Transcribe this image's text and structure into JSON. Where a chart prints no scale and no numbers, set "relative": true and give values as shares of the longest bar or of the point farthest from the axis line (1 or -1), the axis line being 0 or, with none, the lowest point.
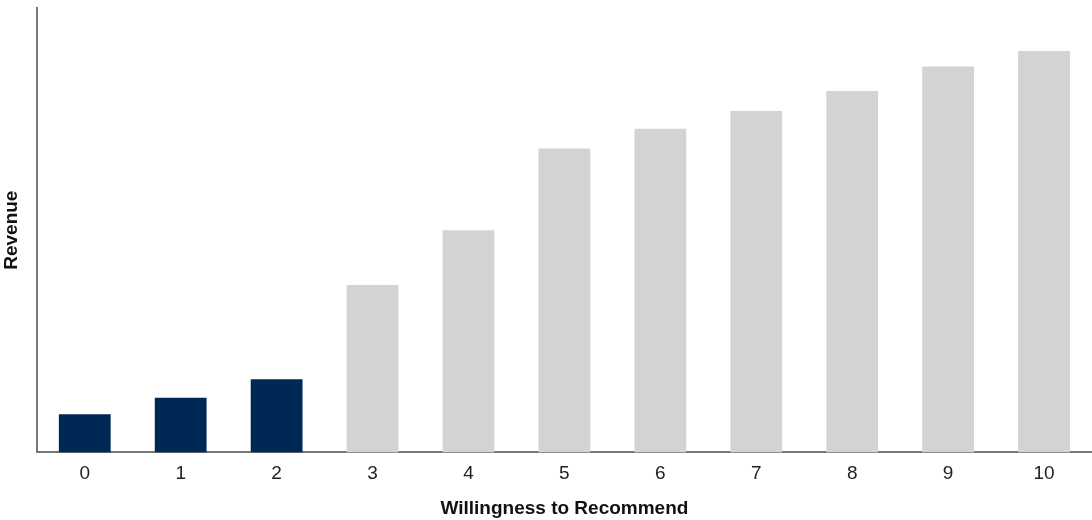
{
  "chart_data": {
    "type": "bar",
    "relative": true,
    "xlabel": "Willingness to Recommend",
    "ylabel": "Revenue",
    "categories": [
      "0",
      "1",
      "2",
      "3",
      "4",
      "5",
      "6",
      "7",
      "8",
      "9",
      "10"
    ],
    "values": [
      0.095,
      0.136,
      0.182,
      0.417,
      0.553,
      0.757,
      0.806,
      0.85,
      0.9,
      0.961,
      1
    ],
    "colors": [
      "#002855",
      "#002855",
      "#002855",
      "#d3d3d3",
      "#d3d3d3",
      "#d3d3d3",
      "#d3d3d3",
      "#d3d3d3",
      "#d3d3d3",
      "#d3d3d3",
      "#d3d3d3"
    ],
    "grid": false,
    "legend": false
  }
}
